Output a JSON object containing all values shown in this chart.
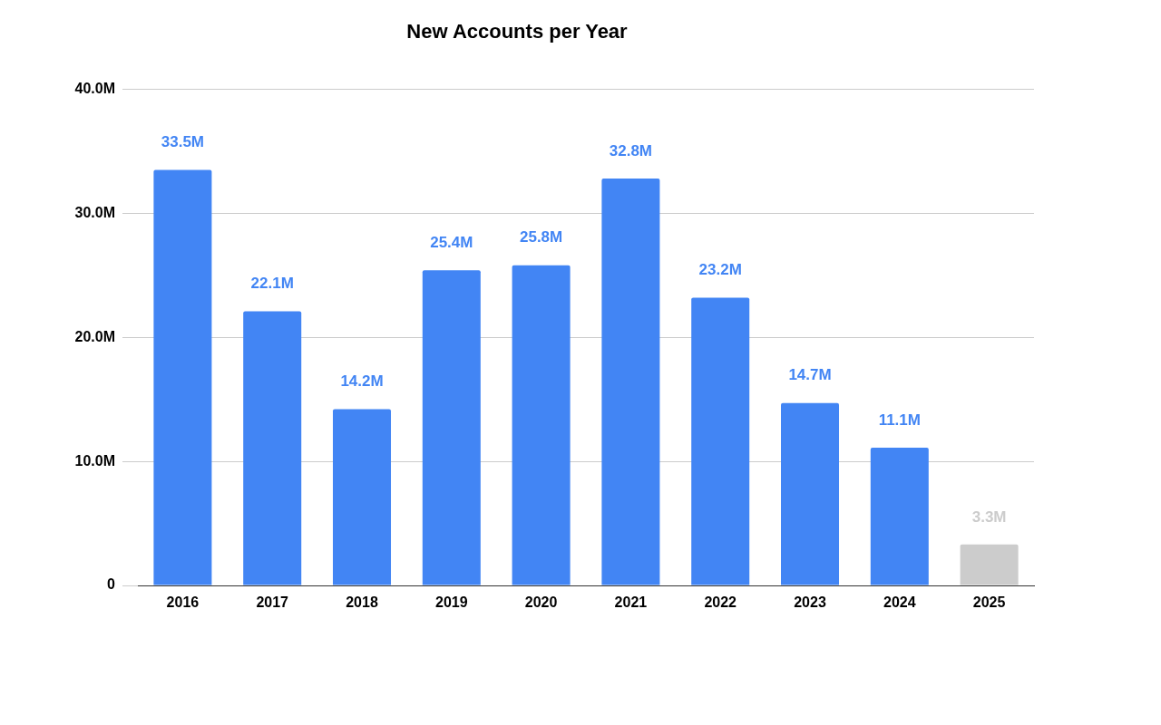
{
  "chart_data": {
    "type": "bar",
    "title": "New Accounts per Year",
    "categories": [
      "2016",
      "2017",
      "2018",
      "2019",
      "2020",
      "2021",
      "2022",
      "2023",
      "2024",
      "2025"
    ],
    "values": [
      33.5,
      22.1,
      14.2,
      25.4,
      25.8,
      32.8,
      23.2,
      14.7,
      11.1,
      3.3
    ],
    "colors": [
      "#4285f4",
      "#4285f4",
      "#4285f4",
      "#4285f4",
      "#4285f4",
      "#4285f4",
      "#4285f4",
      "#4285f4",
      "#4285f4",
      "#cccccc"
    ],
    "value_labels": [
      "33.5M",
      "22.1M",
      "14.2M",
      "25.4M",
      "25.8M",
      "32.8M",
      "23.2M",
      "14.7M",
      "11.1M",
      "3.3M"
    ],
    "ylim": [
      0,
      40
    ],
    "yticks": [
      0,
      {
        "value": 10,
        "label": "10.0M"
      },
      {
        "value": 20,
        "label": "20.0M"
      },
      {
        "value": 30,
        "label": "30.0M"
      },
      {
        "value": 40,
        "label": "40.0M"
      }
    ],
    "grid": "y"
  }
}
